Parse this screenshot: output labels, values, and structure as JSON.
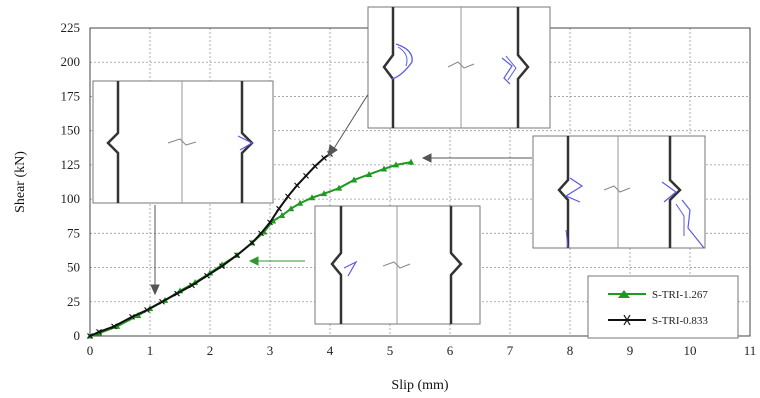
{
  "chart_data": {
    "type": "line",
    "xlabel": "Slip (mm)",
    "ylabel": "Shear (kN)",
    "xlim": [
      0,
      11
    ],
    "ylim": [
      0,
      225
    ],
    "xticks": [
      "0",
      "1",
      "2",
      "3",
      "4",
      "5",
      "6",
      "7",
      "8",
      "9",
      "10",
      "11"
    ],
    "yticks": [
      "0",
      "25",
      "50",
      "75",
      "100",
      "125",
      "150",
      "175",
      "200",
      "225"
    ],
    "grid": true,
    "legend_position": "bottom-right",
    "series": [
      {
        "name": "S-TRI-1.267",
        "color": "#1e9a1e",
        "marker": "triangle",
        "x": [
          0,
          0.15,
          0.45,
          0.8,
          1.0,
          1.25,
          1.5,
          1.75,
          2.0,
          2.2,
          2.45,
          2.7,
          2.9,
          3.05,
          3.2,
          3.35,
          3.5,
          3.7,
          3.9,
          4.15,
          4.4,
          4.65,
          4.9,
          5.1,
          5.35
        ],
        "y": [
          0,
          2,
          7,
          15,
          20,
          26,
          33,
          39,
          46,
          52,
          59,
          68,
          76,
          84,
          88,
          93,
          97,
          101,
          104,
          108,
          114,
          118,
          122,
          125,
          127
        ]
      },
      {
        "name": "S-TRI-0.833",
        "color": "#111111",
        "marker": "cross",
        "x": [
          0,
          0.15,
          0.4,
          0.7,
          0.95,
          1.2,
          1.45,
          1.7,
          1.95,
          2.2,
          2.45,
          2.7,
          2.85,
          3.0,
          3.15,
          3.3,
          3.45,
          3.6,
          3.75,
          3.9,
          4.0
        ],
        "y": [
          0,
          3,
          7,
          14,
          19,
          25,
          31,
          37,
          44,
          51,
          59,
          68,
          75,
          83,
          93,
          102,
          110,
          117,
          124,
          130,
          133
        ]
      }
    ]
  }
}
